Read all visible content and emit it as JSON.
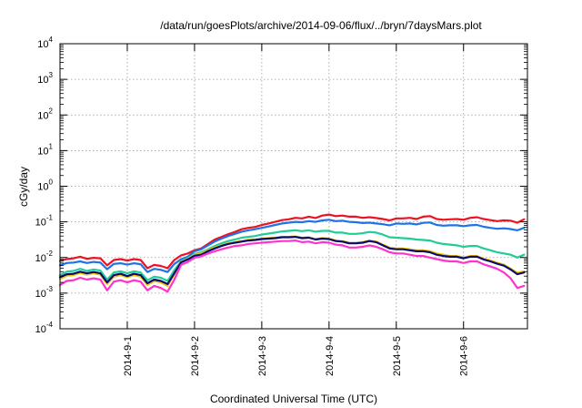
{
  "chart_data": {
    "type": "line",
    "title": "/data/run/goesPlots/archive/2014-09-06/flux/../bryn/7daysMars.plot",
    "xlabel": "Coordinated Universal Time (UTC)",
    "ylabel": "cGy/day",
    "yscale": "log",
    "ylim": [
      0.0001,
      10000
    ],
    "y_ticks": [
      {
        "base": "10",
        "exp": "-4",
        "value": 0.0001
      },
      {
        "base": "10",
        "exp": "-3",
        "value": 0.001
      },
      {
        "base": "10",
        "exp": "-2",
        "value": 0.01
      },
      {
        "base": "10",
        "exp": "-1",
        "value": 0.1
      },
      {
        "base": "10",
        "exp": "0",
        "value": 1
      },
      {
        "base": "10",
        "exp": "1",
        "value": 10
      },
      {
        "base": "10",
        "exp": "2",
        "value": 100
      },
      {
        "base": "10",
        "exp": "3",
        "value": 1000
      },
      {
        "base": "10",
        "exp": "4",
        "value": 10000
      }
    ],
    "x_ticks": [
      "2014-9-1",
      "2014-9-2",
      "2014-9-3",
      "2014-9-4",
      "2014-9-5",
      "2014-9-6"
    ],
    "x_tick_days": [
      1,
      2,
      3,
      4,
      5,
      6
    ],
    "xlim_days": [
      0.0,
      6.95
    ],
    "grid": true,
    "x_days": [
      0.0,
      0.1,
      0.2,
      0.3,
      0.4,
      0.5,
      0.6,
      0.7,
      0.8,
      0.9,
      1.0,
      1.1,
      1.2,
      1.3,
      1.4,
      1.5,
      1.6,
      1.7,
      1.8,
      1.9,
      2.0,
      2.1,
      2.2,
      2.3,
      2.4,
      2.5,
      2.6,
      2.7,
      2.8,
      2.9,
      3.0,
      3.1,
      3.2,
      3.3,
      3.4,
      3.5,
      3.6,
      3.7,
      3.8,
      3.9,
      4.0,
      4.1,
      4.2,
      4.3,
      4.4,
      4.5,
      4.6,
      4.7,
      4.8,
      4.9,
      5.0,
      5.1,
      5.2,
      5.3,
      5.4,
      5.5,
      5.6,
      5.7,
      5.8,
      5.9,
      6.0,
      6.1,
      6.2,
      6.3,
      6.4,
      6.5,
      6.6,
      6.7,
      6.8,
      6.9
    ],
    "series": [
      {
        "color": "#ee1122",
        "values": [
          0.008,
          0.009,
          0.0095,
          0.0105,
          0.0092,
          0.0098,
          0.0095,
          0.006,
          0.0085,
          0.009,
          0.0082,
          0.009,
          0.0085,
          0.005,
          0.0062,
          0.0058,
          0.005,
          0.0085,
          0.0115,
          0.013,
          0.016,
          0.018,
          0.024,
          0.032,
          0.038,
          0.045,
          0.052,
          0.062,
          0.068,
          0.072,
          0.082,
          0.09,
          0.1,
          0.112,
          0.118,
          0.13,
          0.125,
          0.14,
          0.128,
          0.15,
          0.16,
          0.145,
          0.15,
          0.14,
          0.14,
          0.13,
          0.135,
          0.128,
          0.12,
          0.11,
          0.125,
          0.125,
          0.13,
          0.12,
          0.14,
          0.145,
          0.12,
          0.115,
          0.118,
          0.12,
          0.115,
          0.13,
          0.135,
          0.12,
          0.112,
          0.105,
          0.11,
          0.108,
          0.095,
          0.118
        ]
      },
      {
        "color": "#1e73e8",
        "values": [
          0.006,
          0.007,
          0.0072,
          0.0078,
          0.007,
          0.0075,
          0.0072,
          0.0047,
          0.0066,
          0.0069,
          0.0063,
          0.0069,
          0.0065,
          0.0039,
          0.0048,
          0.0045,
          0.0039,
          0.0066,
          0.0089,
          0.0105,
          0.015,
          0.017,
          0.022,
          0.028,
          0.034,
          0.04,
          0.046,
          0.053,
          0.058,
          0.062,
          0.068,
          0.074,
          0.082,
          0.09,
          0.095,
          0.1,
          0.098,
          0.105,
          0.1,
          0.11,
          0.115,
          0.105,
          0.108,
          0.1,
          0.098,
          0.093,
          0.095,
          0.09,
          0.086,
          0.08,
          0.09,
          0.088,
          0.09,
          0.085,
          0.094,
          0.096,
          0.082,
          0.078,
          0.08,
          0.08,
          0.076,
          0.08,
          0.082,
          0.073,
          0.068,
          0.064,
          0.066,
          0.063,
          0.058,
          0.068
        ]
      },
      {
        "color": "#22cc99",
        "values": [
          0.0032,
          0.004,
          0.0042,
          0.0048,
          0.0042,
          0.0046,
          0.0043,
          0.0024,
          0.0038,
          0.0041,
          0.0036,
          0.0041,
          0.0038,
          0.0023,
          0.0029,
          0.0027,
          0.0022,
          0.0044,
          0.0078,
          0.0095,
          0.0125,
          0.014,
          0.017,
          0.021,
          0.025,
          0.029,
          0.032,
          0.036,
          0.038,
          0.04,
          0.044,
          0.047,
          0.05,
          0.054,
          0.056,
          0.058,
          0.055,
          0.058,
          0.053,
          0.056,
          0.056,
          0.05,
          0.05,
          0.046,
          0.046,
          0.048,
          0.052,
          0.05,
          0.044,
          0.037,
          0.036,
          0.035,
          0.034,
          0.032,
          0.031,
          0.03,
          0.026,
          0.024,
          0.023,
          0.022,
          0.02,
          0.021,
          0.021,
          0.018,
          0.016,
          0.014,
          0.013,
          0.012,
          0.01,
          0.012
        ]
      },
      {
        "color": "#f0c400",
        "values": [
          0.0025,
          0.0031,
          0.0032,
          0.0037,
          0.0033,
          0.0036,
          0.0033,
          0.0018,
          0.0029,
          0.0032,
          0.0028,
          0.0032,
          0.0029,
          0.0017,
          0.0022,
          0.002,
          0.0016,
          0.0034,
          0.0076,
          0.0092,
          0.0118,
          0.013,
          0.016,
          0.019,
          0.022,
          0.025,
          0.027,
          0.029,
          0.031,
          0.032,
          0.034,
          0.035,
          0.036,
          0.038,
          0.038,
          0.039,
          0.036,
          0.037,
          0.033,
          0.035,
          0.034,
          0.03,
          0.029,
          0.026,
          0.026,
          0.027,
          0.03,
          0.028,
          0.023,
          0.019,
          0.018,
          0.018,
          0.017,
          0.016,
          0.016,
          0.015,
          0.013,
          0.012,
          0.011,
          0.011,
          0.01,
          0.011,
          0.011,
          0.0093,
          0.0082,
          0.0071,
          0.0063,
          0.0049,
          0.0037,
          0.0041
        ]
      },
      {
        "color": "#0b0b6e",
        "values": [
          0.0028,
          0.0034,
          0.0035,
          0.004,
          0.0036,
          0.0039,
          0.0036,
          0.002,
          0.0032,
          0.0035,
          0.003,
          0.0035,
          0.0032,
          0.0019,
          0.0024,
          0.0022,
          0.0018,
          0.0036,
          0.0073,
          0.0088,
          0.0112,
          0.012,
          0.015,
          0.018,
          0.021,
          0.024,
          0.026,
          0.028,
          0.03,
          0.031,
          0.033,
          0.034,
          0.035,
          0.037,
          0.037,
          0.038,
          0.035,
          0.036,
          0.032,
          0.034,
          0.033,
          0.029,
          0.028,
          0.025,
          0.025,
          0.026,
          0.029,
          0.027,
          0.022,
          0.018,
          0.017,
          0.017,
          0.016,
          0.015,
          0.015,
          0.014,
          0.012,
          0.011,
          0.0105,
          0.0105,
          0.0095,
          0.0105,
          0.0105,
          0.0088,
          0.0078,
          0.0067,
          0.0059,
          0.0046,
          0.0034,
          0.0038
        ]
      },
      {
        "color": "#ff33cc",
        "values": [
          0.0017,
          0.0022,
          0.0023,
          0.0027,
          0.0024,
          0.0026,
          0.0024,
          0.0012,
          0.0021,
          0.0023,
          0.002,
          0.0023,
          0.0021,
          0.0012,
          0.0016,
          0.0014,
          0.0011,
          0.0024,
          0.0062,
          0.0075,
          0.0098,
          0.0108,
          0.013,
          0.015,
          0.017,
          0.019,
          0.021,
          0.022,
          0.024,
          0.025,
          0.026,
          0.027,
          0.028,
          0.029,
          0.029,
          0.03,
          0.027,
          0.028,
          0.025,
          0.027,
          0.026,
          0.023,
          0.022,
          0.019,
          0.019,
          0.02,
          0.022,
          0.02,
          0.017,
          0.014,
          0.013,
          0.013,
          0.012,
          0.011,
          0.011,
          0.01,
          0.009,
          0.0082,
          0.0078,
          0.0078,
          0.007,
          0.0078,
          0.0078,
          0.0064,
          0.0056,
          0.0048,
          0.0038,
          0.0026,
          0.0014,
          0.0016
        ]
      }
    ]
  }
}
